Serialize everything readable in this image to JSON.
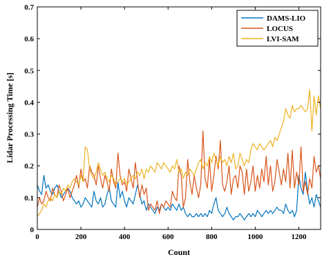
{
  "chart_data": {
    "type": "line",
    "title": "",
    "xlabel": "Count",
    "ylabel": "Lidar Processing Time [s]",
    "xlim": [
      0,
      1300
    ],
    "ylim": [
      0,
      0.7
    ],
    "x_ticks": [
      0,
      200,
      400,
      600,
      800,
      1000,
      1200
    ],
    "y_ticks": [
      0,
      0.1,
      0.2,
      0.3,
      0.4,
      0.5,
      0.6,
      0.7
    ],
    "grid": false,
    "legend_position": "top-right",
    "series": [
      {
        "name": "DAMS-LIO",
        "color": "#0072BD",
        "x": [
          0,
          10,
          20,
          30,
          40,
          50,
          60,
          70,
          80,
          90,
          100,
          110,
          120,
          130,
          140,
          150,
          160,
          170,
          180,
          190,
          200,
          210,
          220,
          230,
          240,
          250,
          260,
          270,
          280,
          290,
          300,
          310,
          320,
          330,
          340,
          350,
          360,
          370,
          380,
          390,
          400,
          410,
          420,
          430,
          440,
          450,
          460,
          470,
          480,
          490,
          500,
          510,
          520,
          530,
          540,
          550,
          560,
          570,
          580,
          590,
          600,
          610,
          620,
          630,
          640,
          650,
          660,
          670,
          680,
          690,
          700,
          710,
          720,
          730,
          740,
          750,
          760,
          770,
          780,
          790,
          800,
          810,
          820,
          830,
          840,
          850,
          860,
          870,
          880,
          890,
          900,
          910,
          920,
          930,
          940,
          950,
          960,
          970,
          980,
          990,
          1000,
          1010,
          1020,
          1030,
          1040,
          1050,
          1060,
          1070,
          1080,
          1090,
          1100,
          1110,
          1120,
          1130,
          1140,
          1150,
          1160,
          1170,
          1180,
          1190,
          1200,
          1210,
          1220,
          1230,
          1240,
          1250,
          1260,
          1270,
          1280,
          1290,
          1300
        ],
        "values": [
          0.14,
          0.12,
          0.11,
          0.17,
          0.13,
          0.14,
          0.12,
          0.11,
          0.13,
          0.14,
          0.12,
          0.1,
          0.11,
          0.12,
          0.13,
          0.12,
          0.1,
          0.09,
          0.08,
          0.09,
          0.07,
          0.08,
          0.1,
          0.09,
          0.08,
          0.07,
          0.12,
          0.09,
          0.08,
          0.1,
          0.07,
          0.08,
          0.11,
          0.13,
          0.09,
          0.08,
          0.07,
          0.15,
          0.1,
          0.12,
          0.09,
          0.07,
          0.1,
          0.09,
          0.08,
          0.11,
          0.14,
          0.11,
          0.08,
          0.09,
          0.06,
          0.08,
          0.07,
          0.06,
          0.05,
          0.07,
          0.06,
          0.08,
          0.07,
          0.06,
          0.07,
          0.06,
          0.08,
          0.07,
          0.06,
          0.08,
          0.06,
          0.07,
          0.05,
          0.04,
          0.05,
          0.04,
          0.04,
          0.05,
          0.04,
          0.05,
          0.04,
          0.05,
          0.04,
          0.06,
          0.05,
          0.08,
          0.1,
          0.06,
          0.05,
          0.04,
          0.05,
          0.07,
          0.05,
          0.04,
          0.03,
          0.04,
          0.04,
          0.05,
          0.04,
          0.03,
          0.04,
          0.05,
          0.04,
          0.05,
          0.04,
          0.06,
          0.05,
          0.04,
          0.05,
          0.06,
          0.05,
          0.06,
          0.05,
          0.06,
          0.07,
          0.06,
          0.06,
          0.05,
          0.08,
          0.06,
          0.05,
          0.06,
          0.04,
          0.06,
          0.17,
          0.13,
          0.11,
          0.18,
          0.12,
          0.08,
          0.1,
          0.07,
          0.11,
          0.09,
          0.07
        ]
      },
      {
        "name": "LOCUS",
        "color": "#D95319",
        "x": [
          0,
          10,
          20,
          30,
          40,
          50,
          60,
          70,
          80,
          90,
          100,
          110,
          120,
          130,
          140,
          150,
          160,
          170,
          180,
          190,
          200,
          210,
          220,
          230,
          240,
          250,
          260,
          270,
          280,
          290,
          300,
          310,
          320,
          330,
          340,
          350,
          360,
          370,
          380,
          390,
          400,
          410,
          420,
          430,
          440,
          450,
          460,
          470,
          480,
          490,
          500,
          510,
          520,
          530,
          540,
          550,
          560,
          570,
          580,
          590,
          600,
          610,
          620,
          630,
          640,
          650,
          660,
          670,
          680,
          690,
          700,
          710,
          720,
          730,
          740,
          750,
          760,
          770,
          780,
          790,
          800,
          810,
          820,
          830,
          840,
          850,
          860,
          870,
          880,
          890,
          900,
          910,
          920,
          930,
          940,
          950,
          960,
          970,
          980,
          990,
          1000,
          1010,
          1020,
          1030,
          1040,
          1050,
          1060,
          1070,
          1080,
          1090,
          1100,
          1110,
          1120,
          1130,
          1140,
          1150,
          1160,
          1170,
          1180,
          1190,
          1200,
          1210,
          1220,
          1230,
          1240,
          1250,
          1260,
          1270,
          1280,
          1290,
          1300
        ],
        "values": [
          0.07,
          0.1,
          0.08,
          0.09,
          0.12,
          0.1,
          0.09,
          0.13,
          0.11,
          0.1,
          0.14,
          0.12,
          0.09,
          0.11,
          0.13,
          0.1,
          0.12,
          0.14,
          0.17,
          0.13,
          0.19,
          0.15,
          0.16,
          0.13,
          0.2,
          0.18,
          0.17,
          0.14,
          0.2,
          0.16,
          0.13,
          0.17,
          0.15,
          0.12,
          0.19,
          0.15,
          0.13,
          0.24,
          0.17,
          0.14,
          0.15,
          0.12,
          0.19,
          0.16,
          0.13,
          0.21,
          0.15,
          0.1,
          0.14,
          0.11,
          0.13,
          0.06,
          0.08,
          0.07,
          0.06,
          0.09,
          0.05,
          0.08,
          0.07,
          0.09,
          0.08,
          0.07,
          0.12,
          0.1,
          0.09,
          0.2,
          0.17,
          0.07,
          0.1,
          0.22,
          0.15,
          0.11,
          0.17,
          0.13,
          0.1,
          0.14,
          0.31,
          0.16,
          0.13,
          0.22,
          0.12,
          0.17,
          0.23,
          0.19,
          0.28,
          0.14,
          0.12,
          0.15,
          0.2,
          0.11,
          0.16,
          0.17,
          0.13,
          0.2,
          0.18,
          0.11,
          0.19,
          0.12,
          0.15,
          0.2,
          0.12,
          0.17,
          0.13,
          0.19,
          0.15,
          0.23,
          0.14,
          0.2,
          0.12,
          0.15,
          0.22,
          0.18,
          0.14,
          0.19,
          0.15,
          0.24,
          0.13,
          0.25,
          0.13,
          0.18,
          0.14,
          0.26,
          0.12,
          0.15,
          0.11,
          0.16,
          0.13,
          0.23,
          0.18,
          0.2,
          0.16
        ]
      },
      {
        "name": "LVI-SAM",
        "color": "#EDB120",
        "x": [
          0,
          10,
          20,
          30,
          40,
          50,
          60,
          70,
          80,
          90,
          100,
          110,
          120,
          130,
          140,
          150,
          160,
          170,
          180,
          190,
          200,
          210,
          220,
          230,
          240,
          250,
          260,
          270,
          280,
          290,
          300,
          310,
          320,
          330,
          340,
          350,
          360,
          370,
          380,
          390,
          400,
          410,
          420,
          430,
          440,
          450,
          460,
          470,
          480,
          490,
          500,
          510,
          520,
          530,
          540,
          550,
          560,
          570,
          580,
          590,
          600,
          610,
          620,
          630,
          640,
          650,
          660,
          670,
          680,
          690,
          700,
          710,
          720,
          730,
          740,
          750,
          760,
          770,
          780,
          790,
          800,
          810,
          820,
          830,
          840,
          850,
          860,
          870,
          880,
          890,
          900,
          910,
          920,
          930,
          940,
          950,
          960,
          970,
          980,
          990,
          1000,
          1010,
          1020,
          1030,
          1040,
          1050,
          1060,
          1070,
          1080,
          1090,
          1100,
          1110,
          1120,
          1130,
          1140,
          1150,
          1160,
          1170,
          1180,
          1190,
          1200,
          1210,
          1220,
          1230,
          1240,
          1250,
          1260,
          1270,
          1280,
          1290,
          1300
        ],
        "values": [
          0.04,
          0.05,
          0.06,
          0.08,
          0.07,
          0.09,
          0.1,
          0.09,
          0.11,
          0.1,
          0.12,
          0.11,
          0.13,
          0.12,
          0.14,
          0.13,
          0.15,
          0.16,
          0.15,
          0.14,
          0.17,
          0.15,
          0.26,
          0.25,
          0.19,
          0.17,
          0.16,
          0.18,
          0.21,
          0.19,
          0.17,
          0.18,
          0.16,
          0.15,
          0.17,
          0.16,
          0.14,
          0.15,
          0.16,
          0.15,
          0.16,
          0.14,
          0.15,
          0.16,
          0.17,
          0.16,
          0.18,
          0.17,
          0.19,
          0.16,
          0.19,
          0.18,
          0.2,
          0.19,
          0.18,
          0.21,
          0.2,
          0.19,
          0.21,
          0.2,
          0.19,
          0.18,
          0.2,
          0.19,
          0.22,
          0.18,
          0.19,
          0.16,
          0.18,
          0.17,
          0.19,
          0.18,
          0.17,
          0.19,
          0.21,
          0.22,
          0.19,
          0.21,
          0.2,
          0.23,
          0.21,
          0.24,
          0.22,
          0.2,
          0.23,
          0.21,
          0.22,
          0.2,
          0.23,
          0.21,
          0.24,
          0.19,
          0.2,
          0.24,
          0.22,
          0.2,
          0.22,
          0.21,
          0.25,
          0.27,
          0.26,
          0.25,
          0.27,
          0.26,
          0.25,
          0.26,
          0.27,
          0.28,
          0.26,
          0.29,
          0.28,
          0.3,
          0.32,
          0.34,
          0.38,
          0.36,
          0.35,
          0.39,
          0.37,
          0.38,
          0.38,
          0.39,
          0.38,
          0.37,
          0.38,
          0.44,
          0.31,
          0.42,
          0.36,
          0.42,
          0.38
        ]
      }
    ]
  }
}
